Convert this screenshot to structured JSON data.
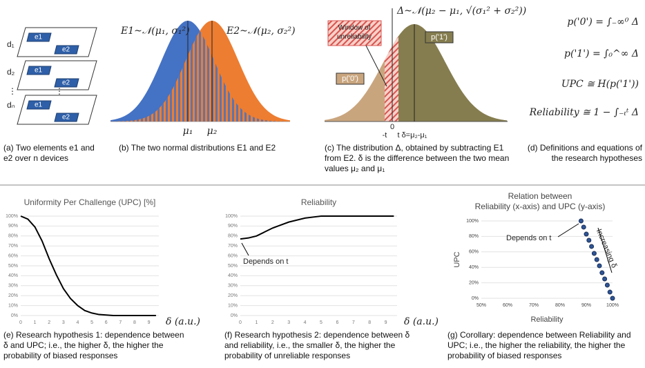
{
  "panel_a": {
    "devices": [
      "d₁",
      "d₂",
      "⋮",
      "dₙ"
    ],
    "elements": [
      "e1",
      "e2"
    ],
    "caption": "(a) Two elements e1 and e2 over n devices"
  },
  "panel_b": {
    "labels": [
      "E1~𝒩(μ₁, σ₁²)",
      "E2~𝒩(μ₂, σ₂²)"
    ],
    "ticks": [
      "μ₁",
      "μ₂"
    ],
    "caption": "(b) The two normal distributions E1 and E2"
  },
  "panel_c": {
    "dist_label": "Δ~𝒩(μ₂ − μ₁, √(σ₁² + σ₂²))",
    "window": "Window of unreliability",
    "p1": "p('1')",
    "p0": "p('0')",
    "ticks": [
      "-t",
      "0",
      "t",
      "δ=μ₂-μ₁"
    ],
    "caption": "(c) The distribution Δ, obtained by subtracting E1 from E2. δ is the difference between the two mean values μ₂ and μ₁"
  },
  "panel_d": {
    "equations": [
      "p('0') = ∫₋∞⁰ Δ",
      "p('1') = ∫₀^∞ Δ",
      "UPC ≅ H(p('1'))",
      "Reliability ≅ 1 − ∫₋ₜᵗ Δ"
    ],
    "caption": "(d) Definitions and equations of the research hypotheses"
  },
  "chart_data": [
    {
      "type": "line",
      "title": "Uniformity Per Challenge (UPC) [%]",
      "x_label": "δ (a.u.)",
      "x": [
        0,
        0.5,
        1,
        1.5,
        2,
        2.5,
        3,
        3.5,
        4,
        4.5,
        5,
        5.5,
        6,
        6.5,
        7,
        7.5,
        8,
        8.5,
        9,
        9.5
      ],
      "series": [
        {
          "name": "UPC",
          "color": "#000000",
          "values": [
            100,
            97,
            89,
            75,
            57,
            41,
            27,
            17,
            10,
            5,
            2.5,
            1,
            0.5,
            0,
            0,
            0,
            0,
            0,
            0,
            0
          ]
        }
      ],
      "xlim": [
        0,
        9.7
      ],
      "xticks": [
        0,
        1,
        2,
        3,
        4,
        5,
        6,
        7,
        8,
        9
      ],
      "ylim": [
        0,
        100
      ],
      "yticks": [
        {
          "value": 0,
          "label": "0%"
        },
        {
          "value": 10,
          "label": "10%"
        },
        {
          "value": 20,
          "label": "20%"
        },
        {
          "value": 30,
          "label": "30%"
        },
        {
          "value": 40,
          "label": "40%"
        },
        {
          "value": 50,
          "label": "50%"
        },
        {
          "value": 60,
          "label": "60%"
        },
        {
          "value": 70,
          "label": "70%"
        },
        {
          "value": 80,
          "label": "80%"
        },
        {
          "value": 90,
          "label": "90%"
        },
        {
          "value": 100,
          "label": "100%"
        }
      ],
      "grid": true,
      "caption": "(e) Research hypothesis 1: dependence between δ and UPC; i.e., the higher δ, the higher the probability of biased responses"
    },
    {
      "type": "line",
      "title": "Reliability",
      "x_label": "δ (a.u.)",
      "x": [
        0,
        0.5,
        1,
        1.5,
        2,
        2.5,
        3,
        3.5,
        4,
        4.5,
        5,
        5.5,
        6,
        6.5,
        7,
        7.5,
        8,
        8.5,
        9,
        9.5
      ],
      "series": [
        {
          "name": "Reliability",
          "color": "#000000",
          "values": [
            77,
            78,
            80,
            84,
            88,
            91,
            94,
            96,
            98,
            99,
            100,
            100,
            100,
            100,
            100,
            100,
            100,
            100,
            100,
            100
          ]
        }
      ],
      "xlim": [
        0,
        9.7
      ],
      "xticks": [
        0,
        1,
        2,
        3,
        4,
        5,
        6,
        7,
        8,
        9
      ],
      "ylim": [
        0,
        100
      ],
      "yticks": [
        {
          "value": 0,
          "label": "0%"
        },
        {
          "value": 10,
          "label": "10%"
        },
        {
          "value": 20,
          "label": "20%"
        },
        {
          "value": 30,
          "label": "30%"
        },
        {
          "value": 40,
          "label": "40%"
        },
        {
          "value": 50,
          "label": "50%"
        },
        {
          "value": 60,
          "label": "60%"
        },
        {
          "value": 70,
          "label": "70%"
        },
        {
          "value": 80,
          "label": "80%"
        },
        {
          "value": 90,
          "label": "90%"
        },
        {
          "value": 100,
          "label": "100%"
        }
      ],
      "grid": true,
      "annotations": [
        "Depends on t"
      ],
      "caption": "(f) Research hypothesis 2: dependence between δ and reliability, i.e., the smaller δ, the higher the probability of unreliable responses"
    },
    {
      "type": "scatter",
      "title": [
        "Relation between",
        "Reliability (x-axis) and UPC (y-axis)"
      ],
      "x_label": "Reliability",
      "y_label": "UPC",
      "x": [
        88,
        89,
        90,
        91,
        92,
        93,
        94,
        95,
        96,
        97,
        98,
        99,
        100
      ],
      "series": [
        {
          "name": "UPC",
          "color": "#2e5597",
          "values": [
            100,
            92,
            83,
            75,
            67,
            58,
            50,
            42,
            33,
            25,
            17,
            8,
            0
          ]
        }
      ],
      "xlim": [
        50,
        100
      ],
      "xticks": [
        {
          "value": 50,
          "label": "50%"
        },
        {
          "value": 60,
          "label": "60%"
        },
        {
          "value": 70,
          "label": "70%"
        },
        {
          "value": 80,
          "label": "80%"
        },
        {
          "value": 90,
          "label": "90%"
        },
        {
          "value": 100,
          "label": "100%"
        }
      ],
      "ylim": [
        0,
        100
      ],
      "yticks": [
        {
          "value": 0,
          "label": "0%"
        },
        {
          "value": 20,
          "label": "20%"
        },
        {
          "value": 40,
          "label": "40%"
        },
        {
          "value": 60,
          "label": "60%"
        },
        {
          "value": 80,
          "label": "80%"
        },
        {
          "value": 100,
          "label": "100%"
        }
      ],
      "grid": true,
      "annotations": [
        "Depends on t",
        "Increasing δ"
      ],
      "caption": "(g) Corollary: dependence between Reliability and UPC; i.e., the higher the reliability, the higher the probability of biased responses"
    }
  ]
}
